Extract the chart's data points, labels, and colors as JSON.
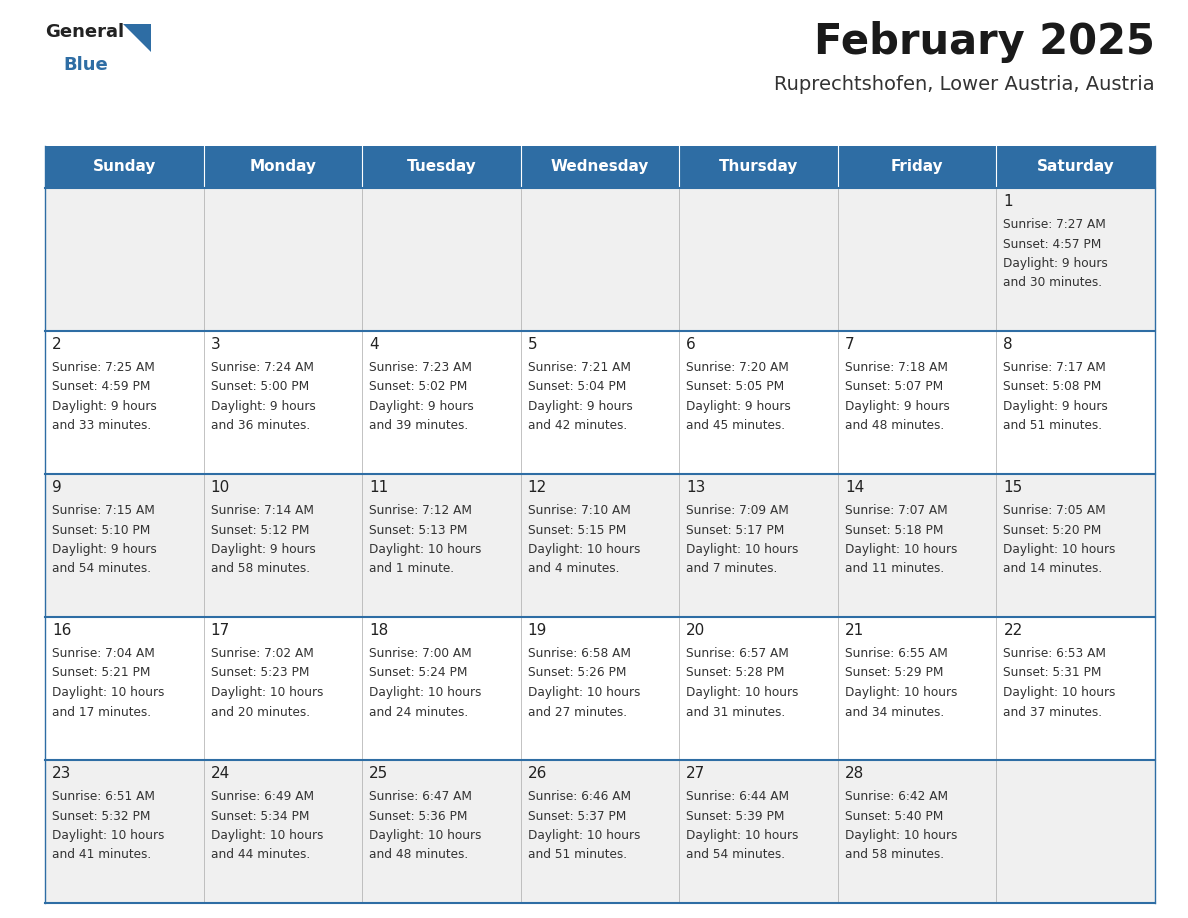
{
  "title": "February 2025",
  "subtitle": "Ruprechtshofen, Lower Austria, Austria",
  "days_of_week": [
    "Sunday",
    "Monday",
    "Tuesday",
    "Wednesday",
    "Thursday",
    "Friday",
    "Saturday"
  ],
  "header_bg": "#2E6DA4",
  "header_text": "#FFFFFF",
  "row_bg_even": "#F0F0F0",
  "row_bg_odd": "#FFFFFF",
  "cell_border": "#AAAAAA",
  "day_num_color": "#222222",
  "info_text_color": "#333333",
  "blue_line_color": "#2E6DA4",
  "calendar_data": {
    "1": {
      "sunrise": "7:27 AM",
      "sunset": "4:57 PM",
      "daylight": "9 hours and 30 minutes."
    },
    "2": {
      "sunrise": "7:25 AM",
      "sunset": "4:59 PM",
      "daylight": "9 hours and 33 minutes."
    },
    "3": {
      "sunrise": "7:24 AM",
      "sunset": "5:00 PM",
      "daylight": "9 hours and 36 minutes."
    },
    "4": {
      "sunrise": "7:23 AM",
      "sunset": "5:02 PM",
      "daylight": "9 hours and 39 minutes."
    },
    "5": {
      "sunrise": "7:21 AM",
      "sunset": "5:04 PM",
      "daylight": "9 hours and 42 minutes."
    },
    "6": {
      "sunrise": "7:20 AM",
      "sunset": "5:05 PM",
      "daylight": "9 hours and 45 minutes."
    },
    "7": {
      "sunrise": "7:18 AM",
      "sunset": "5:07 PM",
      "daylight": "9 hours and 48 minutes."
    },
    "8": {
      "sunrise": "7:17 AM",
      "sunset": "5:08 PM",
      "daylight": "9 hours and 51 minutes."
    },
    "9": {
      "sunrise": "7:15 AM",
      "sunset": "5:10 PM",
      "daylight": "9 hours and 54 minutes."
    },
    "10": {
      "sunrise": "7:14 AM",
      "sunset": "5:12 PM",
      "daylight": "9 hours and 58 minutes."
    },
    "11": {
      "sunrise": "7:12 AM",
      "sunset": "5:13 PM",
      "daylight": "10 hours and 1 minute."
    },
    "12": {
      "sunrise": "7:10 AM",
      "sunset": "5:15 PM",
      "daylight": "10 hours and 4 minutes."
    },
    "13": {
      "sunrise": "7:09 AM",
      "sunset": "5:17 PM",
      "daylight": "10 hours and 7 minutes."
    },
    "14": {
      "sunrise": "7:07 AM",
      "sunset": "5:18 PM",
      "daylight": "10 hours and 11 minutes."
    },
    "15": {
      "sunrise": "7:05 AM",
      "sunset": "5:20 PM",
      "daylight": "10 hours and 14 minutes."
    },
    "16": {
      "sunrise": "7:04 AM",
      "sunset": "5:21 PM",
      "daylight": "10 hours and 17 minutes."
    },
    "17": {
      "sunrise": "7:02 AM",
      "sunset": "5:23 PM",
      "daylight": "10 hours and 20 minutes."
    },
    "18": {
      "sunrise": "7:00 AM",
      "sunset": "5:24 PM",
      "daylight": "10 hours and 24 minutes."
    },
    "19": {
      "sunrise": "6:58 AM",
      "sunset": "5:26 PM",
      "daylight": "10 hours and 27 minutes."
    },
    "20": {
      "sunrise": "6:57 AM",
      "sunset": "5:28 PM",
      "daylight": "10 hours and 31 minutes."
    },
    "21": {
      "sunrise": "6:55 AM",
      "sunset": "5:29 PM",
      "daylight": "10 hours and 34 minutes."
    },
    "22": {
      "sunrise": "6:53 AM",
      "sunset": "5:31 PM",
      "daylight": "10 hours and 37 minutes."
    },
    "23": {
      "sunrise": "6:51 AM",
      "sunset": "5:32 PM",
      "daylight": "10 hours and 41 minutes."
    },
    "24": {
      "sunrise": "6:49 AM",
      "sunset": "5:34 PM",
      "daylight": "10 hours and 44 minutes."
    },
    "25": {
      "sunrise": "6:47 AM",
      "sunset": "5:36 PM",
      "daylight": "10 hours and 48 minutes."
    },
    "26": {
      "sunrise": "6:46 AM",
      "sunset": "5:37 PM",
      "daylight": "10 hours and 51 minutes."
    },
    "27": {
      "sunrise": "6:44 AM",
      "sunset": "5:39 PM",
      "daylight": "10 hours and 54 minutes."
    },
    "28": {
      "sunrise": "6:42 AM",
      "sunset": "5:40 PM",
      "daylight": "10 hours and 58 minutes."
    }
  },
  "weeks": [
    [
      null,
      null,
      null,
      null,
      null,
      null,
      1
    ],
    [
      2,
      3,
      4,
      5,
      6,
      7,
      8
    ],
    [
      9,
      10,
      11,
      12,
      13,
      14,
      15
    ],
    [
      16,
      17,
      18,
      19,
      20,
      21,
      22
    ],
    [
      23,
      24,
      25,
      26,
      27,
      28,
      null
    ]
  ]
}
